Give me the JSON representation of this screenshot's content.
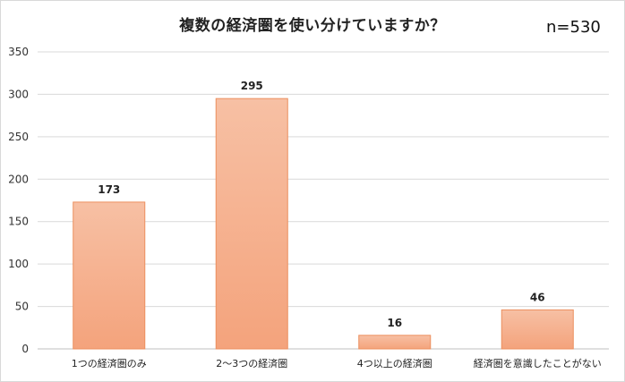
{
  "chart_data": {
    "type": "bar",
    "title": "複数の経済圏を使い分けていますか？",
    "annotation": "n=530",
    "categories": [
      "1つの経済圏のみ",
      "2〜3つの経済圏",
      "4つ以上の経済圏",
      "経済圏を意識したことがない"
    ],
    "values": [
      173,
      295,
      16,
      46
    ],
    "ylim": [
      0,
      350
    ],
    "yticks": [
      0,
      50,
      100,
      150,
      200,
      250,
      300,
      350
    ],
    "grid": true,
    "legend": "none",
    "bar_color_top": "#f7c0a4",
    "bar_color_bottom": "#f4a37c",
    "bar_border": "#ec8f5f"
  }
}
